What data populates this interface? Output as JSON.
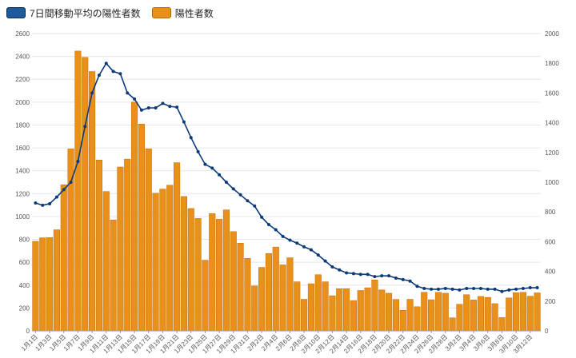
{
  "chart_data": {
    "type": "bar",
    "legend": [
      {
        "label": "7日間移動平均の陽性者数",
        "color": "#1f5a9c",
        "border": "#0b2a55"
      },
      {
        "label": "陽性者数",
        "color": "#e8901a",
        "border": "#b86a08"
      }
    ],
    "legend_position": "top-left",
    "grid": true,
    "left_axis": {
      "min": 0,
      "max": 2600,
      "ticks": [
        "0",
        "200",
        "400",
        "600",
        "800",
        "1000",
        "1200",
        "1400",
        "1600",
        "1800",
        "2000",
        "2200",
        "2400",
        "2600"
      ]
    },
    "right_axis": {
      "min": 0,
      "max": 2000,
      "ticks": [
        "0",
        "200",
        "400",
        "600",
        "800",
        "1000",
        "1200",
        "1400",
        "1600",
        "1800",
        "2000"
      ]
    },
    "x_labels": [
      "1月1日",
      "1月3日",
      "1月5日",
      "1月7日",
      "1月9日",
      "1月11日",
      "1月13日",
      "1月15日",
      "1月17日",
      "1月19日",
      "1月21日",
      "1月23日",
      "1月25日",
      "1月27日",
      "1月29日",
      "1月31日",
      "2月2日",
      "2月4日",
      "2月6日",
      "2月8日",
      "2月10日",
      "2月12日",
      "2月14日",
      "2月16日",
      "2月18日",
      "2月20日",
      "2月22日",
      "2月24日",
      "2月26日",
      "2月28日",
      "3月2日",
      "3月4日",
      "3月6日",
      "3月8日",
      "3月10日",
      "3月12日"
    ],
    "series": [
      {
        "name": "陽性者数",
        "type": "bar",
        "axis": "left",
        "color": "#e8901a",
        "values": [
          783,
          814,
          816,
          884,
          1278,
          1591,
          2447,
          2392,
          2268,
          1494,
          1219,
          970,
          1433,
          1502,
          2001,
          1809,
          1592,
          1204,
          1240,
          1274,
          1471,
          1175,
          1070,
          983,
          618,
          1026,
          976,
          1058,
          868,
          767,
          634,
          393,
          555,
          676,
          733,
          577,
          639,
          429,
          276,
          412,
          491,
          429,
          307,
          369,
          369,
          265,
          353,
          377,
          445,
          358,
          329,
          275,
          180,
          276,
          211,
          337,
          272,
          337,
          329,
          114,
          232,
          316,
          270,
          301,
          293,
          238,
          116,
          288,
          334,
          337,
          303,
          332
        ]
      },
      {
        "name": "7日間移動平均の陽性者数",
        "type": "line",
        "axis": "right",
        "color": "#0b3a78",
        "values": [
          860,
          845,
          855,
          900,
          950,
          1000,
          1140,
          1375,
          1600,
          1720,
          1800,
          1745,
          1730,
          1600,
          1560,
          1485,
          1500,
          1500,
          1530,
          1510,
          1505,
          1405,
          1300,
          1205,
          1120,
          1095,
          1050,
          1000,
          955,
          915,
          875,
          840,
          765,
          715,
          680,
          635,
          610,
          590,
          565,
          545,
          510,
          470,
          430,
          410,
          390,
          385,
          380,
          380,
          365,
          370,
          370,
          355,
          345,
          335,
          300,
          285,
          280,
          280,
          285,
          280,
          275,
          285,
          285,
          285,
          280,
          280,
          265,
          275,
          280,
          285,
          290,
          290
        ]
      }
    ]
  }
}
